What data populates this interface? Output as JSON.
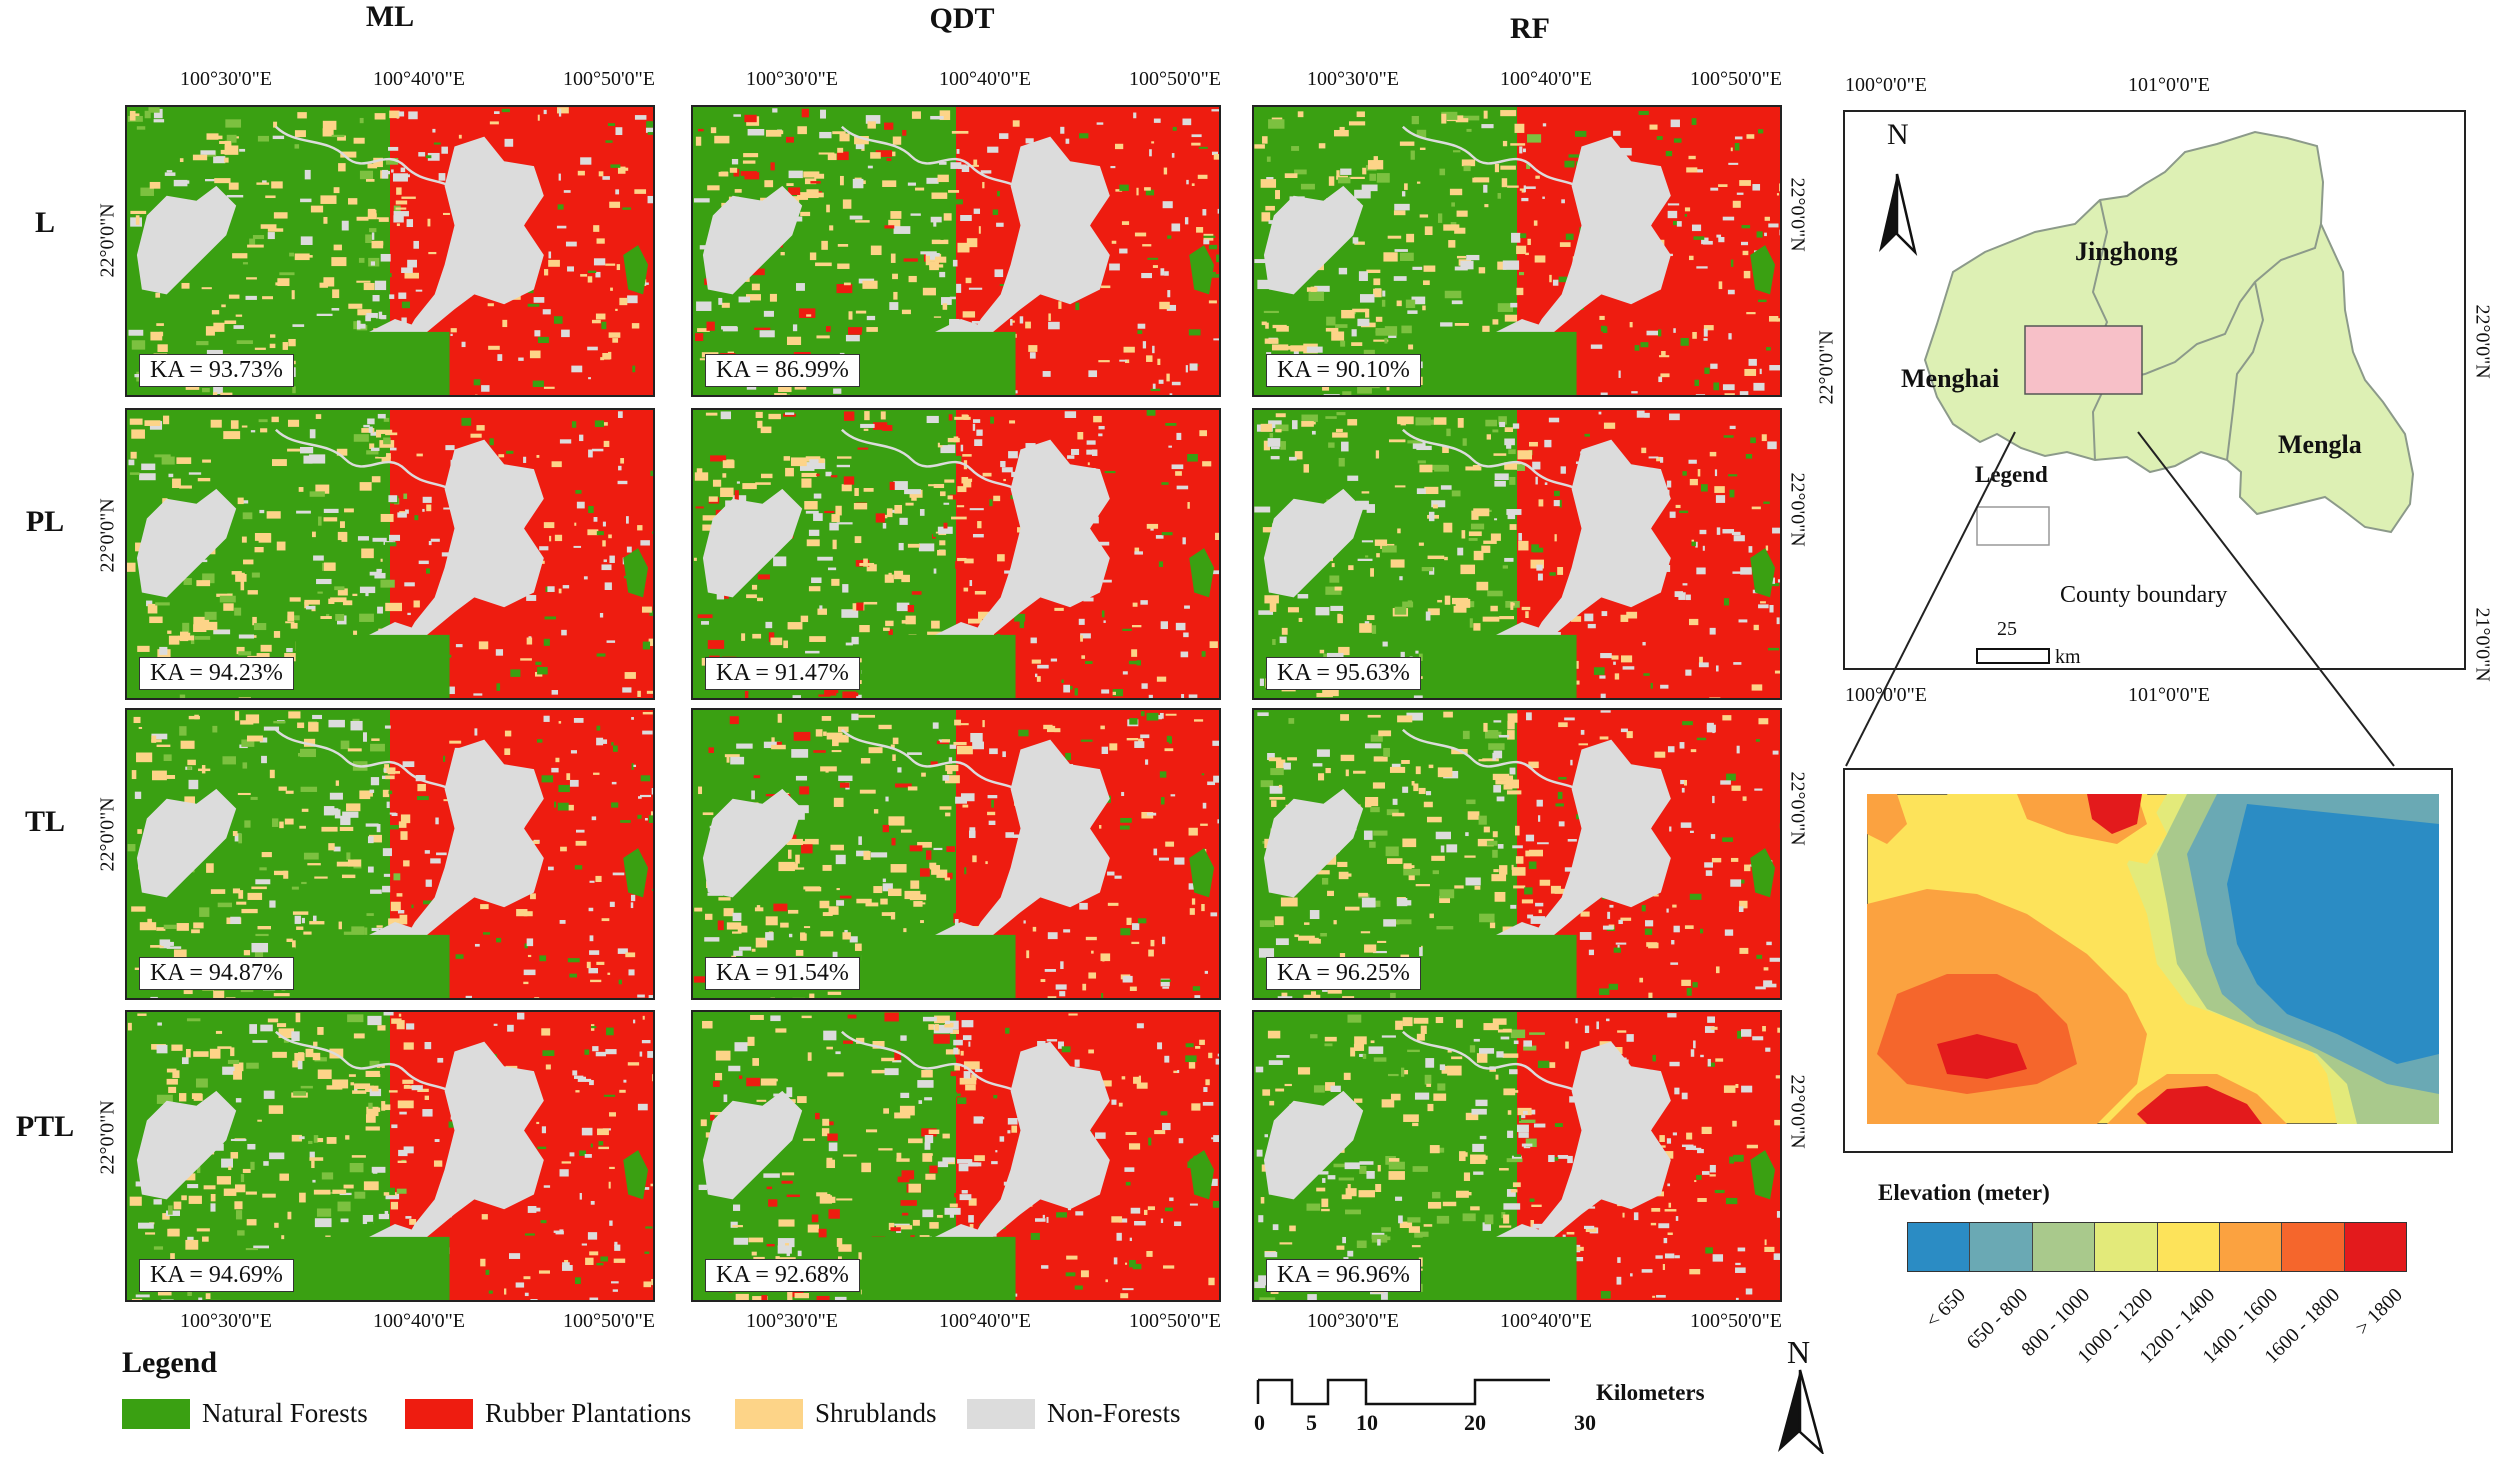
{
  "columns": [
    "ML",
    "QDT",
    "RF"
  ],
  "rows": [
    "L",
    "PL",
    "TL",
    "PTL"
  ],
  "longitude_ticks": [
    "100°30'0\"E",
    "100°40'0\"E",
    "100°50'0\"E"
  ],
  "latitude_tick": "22°0'0\"N",
  "ka_values": [
    [
      "KA = 93.73%",
      "KA = 86.99%",
      "KA = 90.10%"
    ],
    [
      "KA = 94.23%",
      "KA = 91.47%",
      "KA = 95.63%"
    ],
    [
      "KA = 94.87%",
      "KA = 91.54%",
      "KA = 96.25%"
    ],
    [
      "KA = 94.69%",
      "KA = 92.68%",
      "KA = 96.96%"
    ]
  ],
  "legend": {
    "title": "Legend",
    "items": [
      {
        "label": "Natural Forests",
        "color": "#3aa012"
      },
      {
        "label": "Rubber Plantations",
        "color": "#ee1c10"
      },
      {
        "label": "Shrublands",
        "color": "#fdd488"
      },
      {
        "label": "Non-Forests",
        "color": "#dcdcdc"
      }
    ]
  },
  "scalebar": {
    "unit": "Kilometers",
    "ticks": [
      "0",
      "5",
      "10",
      "20",
      "30"
    ]
  },
  "north_label": "N",
  "locator_map": {
    "lon_ticks": [
      "100°0'0\"E",
      "101°0'0\"E"
    ],
    "lat_ticks": [
      "22°0'0\"N",
      "21°0'0\"N"
    ],
    "counties": [
      "Jinghong",
      "Menghai",
      "Mengla"
    ],
    "legend_title": "Legend",
    "legend_item": "County boundary",
    "scale_value": "25",
    "scale_unit": "km",
    "fill_color": "#ddf0b4",
    "study_area_color": "#f7c0c8"
  },
  "elevation": {
    "title": "Elevation (meter)",
    "classes": [
      {
        "label": "< 650",
        "color": "#2b8cc4"
      },
      {
        "label": "650 - 800",
        "color": "#6aa9b4"
      },
      {
        "label": "800 - 1000",
        "color": "#a9c98c"
      },
      {
        "label": "1000 - 1200",
        "color": "#e3ea7a"
      },
      {
        "label": "1200 - 1400",
        "color": "#fde35a"
      },
      {
        "label": "1400 - 1600",
        "color": "#fba240"
      },
      {
        "label": "1600 - 1800",
        "color": "#f5662c"
      },
      {
        "label": "> 1800",
        "color": "#e31a1c"
      }
    ]
  }
}
